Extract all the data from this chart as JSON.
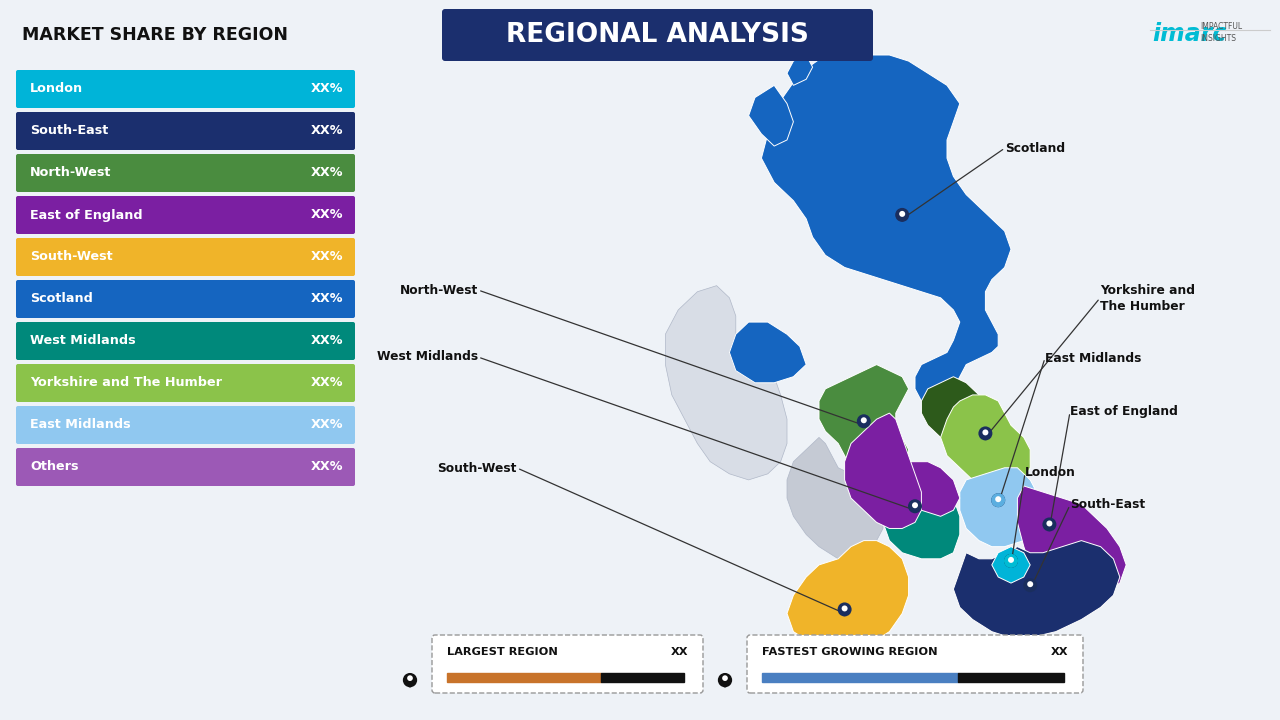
{
  "title": "REGIONAL ANALYSIS",
  "left_title": "MARKET SHARE BY REGION",
  "background_color": "#eef2f7",
  "regions": [
    {
      "name": "London",
      "color": "#00b4d8",
      "value": "XX%"
    },
    {
      "name": "South-East",
      "color": "#1b2f6e",
      "value": "XX%"
    },
    {
      "name": "North-West",
      "color": "#4a8c3f",
      "value": "XX%"
    },
    {
      "name": "East of England",
      "color": "#7b1fa2",
      "value": "XX%"
    },
    {
      "name": "South-West",
      "color": "#f0b429",
      "value": "XX%"
    },
    {
      "name": "Scotland",
      "color": "#1565c0",
      "value": "XX%"
    },
    {
      "name": "West Midlands",
      "color": "#00897b",
      "value": "XX%"
    },
    {
      "name": "Yorkshire and The Humber",
      "color": "#8bc34a",
      "value": "XX%"
    },
    {
      "name": "East Midlands",
      "color": "#90c8f0",
      "value": "XX%"
    },
    {
      "name": "Others",
      "color": "#9c59b6",
      "value": "XX%"
    }
  ],
  "legend_bar1_label": "LARGEST REGION",
  "legend_bar1_value": "XX",
  "legend_bar1_color": "#c8732a",
  "legend_bar2_label": "FASTEST GROWING REGION",
  "legend_bar2_value": "XX",
  "legend_bar2_color": "#4a7fc1",
  "bar_dark": "#111111",
  "imarc_cyan": "#00bcd4",
  "title_box_color": "#1b2f6e",
  "title_text_color": "#ffffff",
  "north_east_color": "#2d5a1b",
  "ireland_color": "#d8dde6",
  "wales_color": "#c5cad4"
}
